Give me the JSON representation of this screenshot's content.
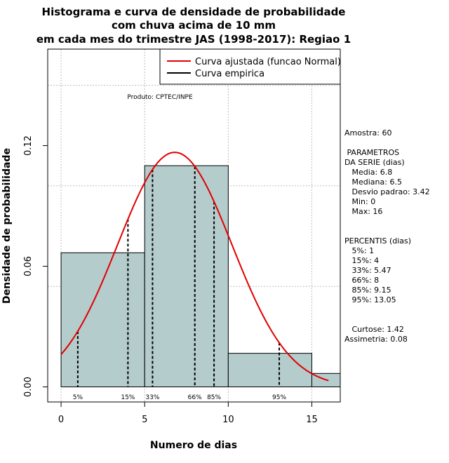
{
  "chart_data": {
    "type": "bar",
    "title_lines": [
      "Histograma e curva de densidade de probabilidade",
      "com chuva acima de 10 mm",
      "em cada mes do trimestre JAS (1998-2017): Regiao 1"
    ],
    "xlabel": "Numero de dias",
    "ylabel": "Densidade de probabilidade",
    "xlim": [
      -0.8,
      16.7
    ],
    "ylim": [
      -0.0075,
      0.168
    ],
    "x_ticks": [
      0,
      5,
      10,
      15
    ],
    "x_tick_labels": [
      "0",
      "5",
      "10",
      "15"
    ],
    "y_ticks": [
      0.0,
      0.06,
      0.12
    ],
    "y_tick_labels": [
      "0.00",
      "0.06",
      "0.12"
    ],
    "grid_x": [
      0,
      5,
      10,
      15
    ],
    "grid_y": [
      0.05,
      0.1,
      0.15
    ],
    "bins": [
      {
        "x0": 0,
        "x1": 5,
        "density": 0.0667
      },
      {
        "x0": 5,
        "x1": 10,
        "density": 0.11
      },
      {
        "x0": 10,
        "x1": 15,
        "density": 0.0167
      },
      {
        "x0": 15,
        "x1": 16.7,
        "density": 0.0067
      }
    ],
    "fitted_curve": {
      "name": "Curva ajustada (funcao Normal)",
      "mean": 6.8,
      "sd": 3.42,
      "x_from": 0,
      "x_to": 16,
      "color": "#e00000"
    },
    "empirical_curve": {
      "name": "Curva empirica",
      "color": "#000000"
    },
    "percentile_lines": [
      {
        "label": "5%",
        "x": 1
      },
      {
        "label": "15%",
        "x": 4
      },
      {
        "label": "33%",
        "x": 5.47
      },
      {
        "label": "66%",
        "x": 8
      },
      {
        "label": "85%",
        "x": 9.15
      },
      {
        "label": "95%",
        "x": 13.05
      }
    ],
    "annotation": "Produto: CPTEC/INPE",
    "legend": [
      "Curva ajustada (funcao Normal)",
      "Curva empirica"
    ],
    "legend_position": "top-right",
    "bar_color": "#b5cccc"
  },
  "side_panel": {
    "lines": [
      "Amostra: 60",
      "",
      " PARAMETROS",
      "DA SERIE (dias)",
      "   Media: 6.8",
      "   Mediana: 6.5",
      "   Desvio padrao: 3.42",
      "   Min: 0",
      "   Max: 16",
      "",
      "",
      "PERCENTIS (dias)",
      "   5%: 1",
      "   15%: 4",
      "   33%: 5.47",
      "   66%: 8",
      "   85%: 9.15",
      "   95%: 13.05",
      "",
      "",
      "   Curtose: 1.42",
      "Assimetria: 0.08"
    ]
  }
}
